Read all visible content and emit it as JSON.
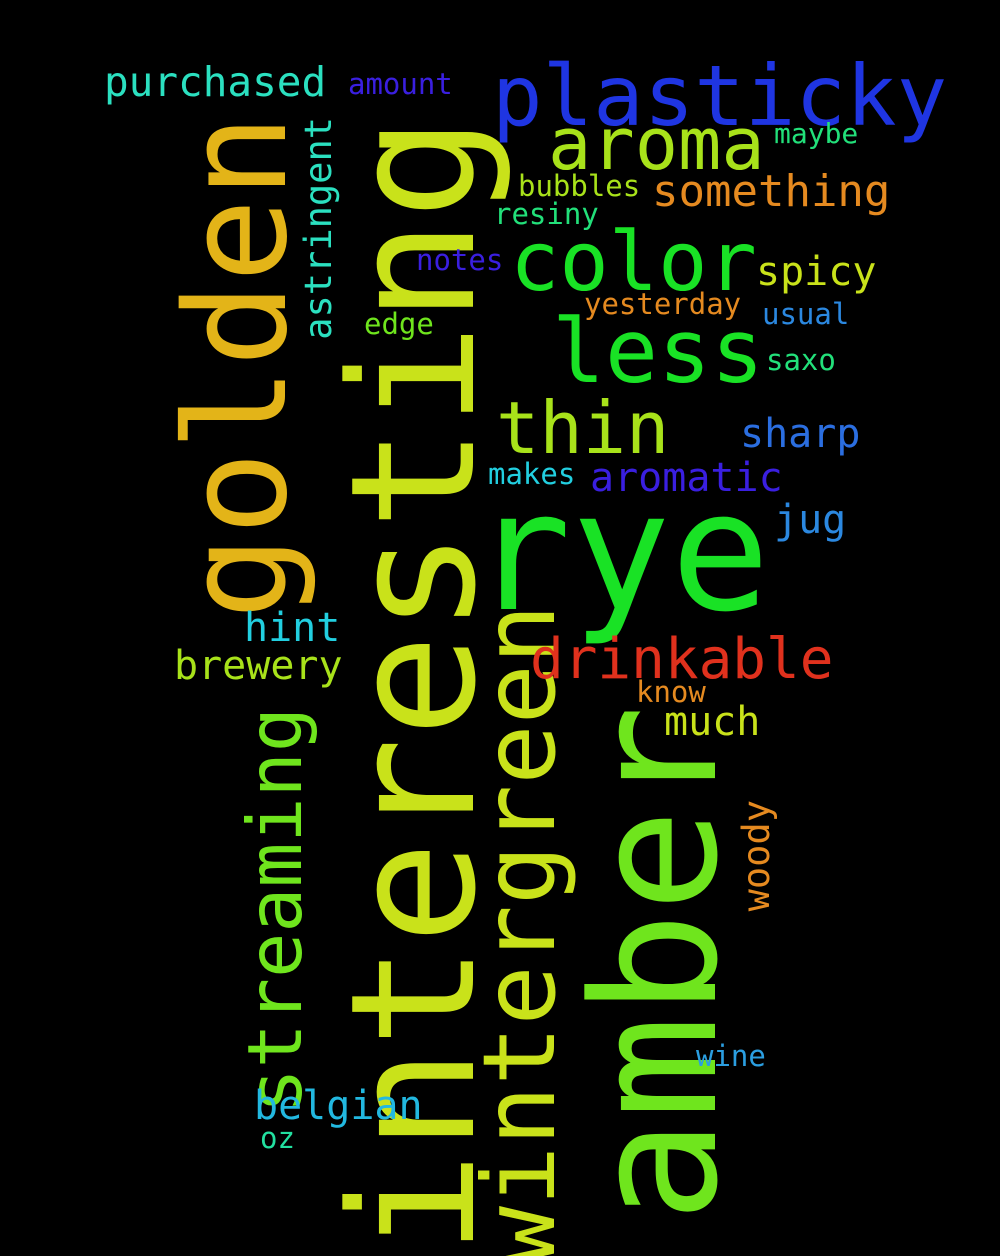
{
  "colors": {
    "background": "#000000",
    "yellow_green": "#c9e21a",
    "lime": "#6fe51d",
    "green": "#19e225",
    "gold": "#e3b418",
    "orange": "#e58a20",
    "red": "#e0311d",
    "blue": "#1f35e2",
    "violet": "#3a1fe0",
    "sky": "#2b88e0",
    "cyan": "#22cfe0",
    "teal": "#2be0c0",
    "spring": "#22e07a",
    "chartreuse": "#a8e21a"
  },
  "words": {
    "interesting": "interesting",
    "amber": "amber",
    "rye": "rye",
    "golden": "golden",
    "wintergreen": "wintergreen",
    "plasticky": "plasticky",
    "color": "color",
    "less": "less",
    "aroma": "aroma",
    "thin": "thin",
    "streaming": "streaming",
    "drinkable": "drinkable",
    "something": "something",
    "purchased": "purchased",
    "astringent": "astringent",
    "spicy": "spicy",
    "aromatic": "aromatic",
    "sharp": "sharp",
    "brewery": "brewery",
    "hint": "hint",
    "much": "much",
    "belgian": "belgian",
    "woody": "woody",
    "jug": "jug",
    "amount": "amount",
    "maybe": "maybe",
    "bubbles": "bubbles",
    "resiny": "resiny",
    "notes": "notes",
    "yesterday": "yesterday",
    "usual": "usual",
    "edge": "edge",
    "saxo": "saxo",
    "makes": "makes",
    "know": "know",
    "wine": "wine",
    "oz": "oz"
  }
}
